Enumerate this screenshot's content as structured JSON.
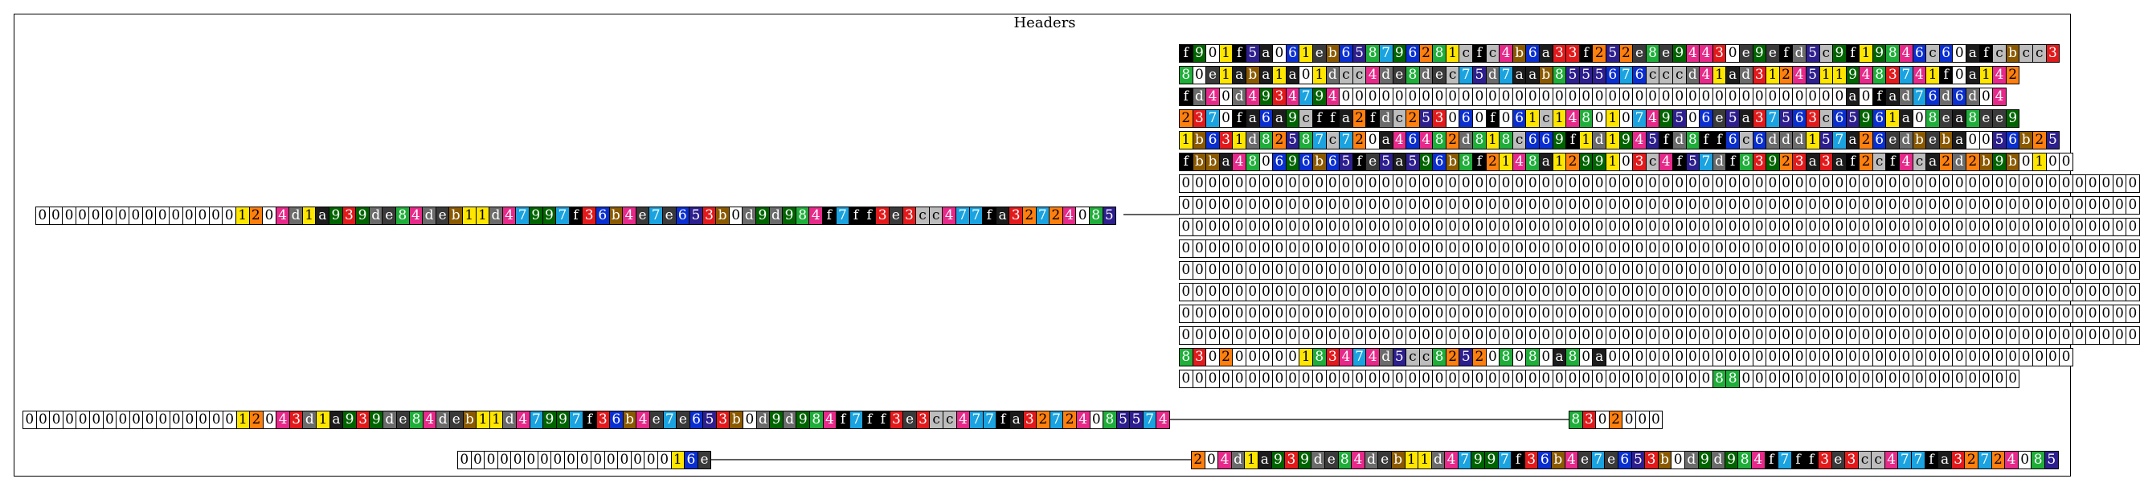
{
  "title": "Headers",
  "palette": {
    "0": "#ffffff",
    "1": "#ffe600",
    "2": "#ff7f0e",
    "3": "#e31a1c",
    "4": "#e7298a",
    "5": "#2e1f8f",
    "6": "#0a2fd1",
    "7": "#1aa3e0",
    "8": "#1fae3a",
    "9": "#006400",
    "a": "#1c1c1c",
    "b": "#8b5a00",
    "c": "#bdbdbd",
    "d": "#6b6b6b",
    "e": "#3a3a3a",
    "f": "#000000"
  },
  "dark_chars": "3456789abdef",
  "rows": [
    {
      "id": "left-1",
      "text": "0000000000000001204d1a939de84deb11d47997f36b4e7e653b0d9d984f7ff3e3cc477fa32724085"
    },
    {
      "id": "right-1",
      "text": "f901f5a061eb658796281cfc4b6a33f252e8e94430e9efd5c9f19846c60afcbcc3"
    },
    {
      "id": "right-2",
      "text": "80e1aba1a01dcc4de8dec75d7aab8555676cccd41ad31245119483741f0a142"
    },
    {
      "id": "right-3",
      "text": "fd40d493479400000000000000000000000000000000000000a0fad76d6d04"
    },
    {
      "id": "right-4",
      "text": "2370fa6a9cffa2fdc253060f061c148010749506e5a37563c65961a08ea8ee9"
    },
    {
      "id": "right-5",
      "text": "1b631d82587c720a46482d818c669f1d1945fd8ff6c6ddd157a26edbeba0056b25"
    },
    {
      "id": "right-6",
      "text": "fbba480696b65fe5a596b8f2148a1299103c4f57df83923a3af2cf4ca2d2b9b0100"
    },
    {
      "id": "right-7",
      "text": "000000000000000000000000000000000000000000000000000000000000000000000000"
    },
    {
      "id": "right-8",
      "text": "000000000000000000000000000000000000000000000000000000000000000000000000"
    },
    {
      "id": "right-9",
      "text": "000000000000000000000000000000000000000000000000000000000000000000000000"
    },
    {
      "id": "right-10",
      "text": "000000000000000000000000000000000000000000000000000000000000000000000000"
    },
    {
      "id": "right-11",
      "text": "000000000000000000000000000000000000000000000000000000000000000000000000"
    },
    {
      "id": "right-12",
      "text": "000000000000000000000000000000000000000000000000000000000000000000000000"
    },
    {
      "id": "right-13",
      "text": "000000000000000000000000000000000000000000000000000000000000000000000000"
    },
    {
      "id": "right-14",
      "text": "000000000000000000000000000000000000000000000000000000000000000000000000"
    },
    {
      "id": "right-15",
      "text": "830200000183474d5cc825208080a80a00000000000000000000000000000000000"
    },
    {
      "id": "right-16",
      "text": "000000000000000000000000000000000000000088000000000000000000000"
    },
    {
      "id": "left-2",
      "text": "000000000000000012043d1a939de84deb11d47997f36b4e7e653b0d9d984f7ff3e3cc477fa32724085574"
    },
    {
      "id": "mid-2",
      "text": "8302000"
    },
    {
      "id": "left-3",
      "text": "000000000000000016e"
    },
    {
      "id": "right-17",
      "text": "204d1a939de84deb11d47997f36b4e7e653b0d9d984f7ff3e3cc477fa32724085"
    }
  ]
}
